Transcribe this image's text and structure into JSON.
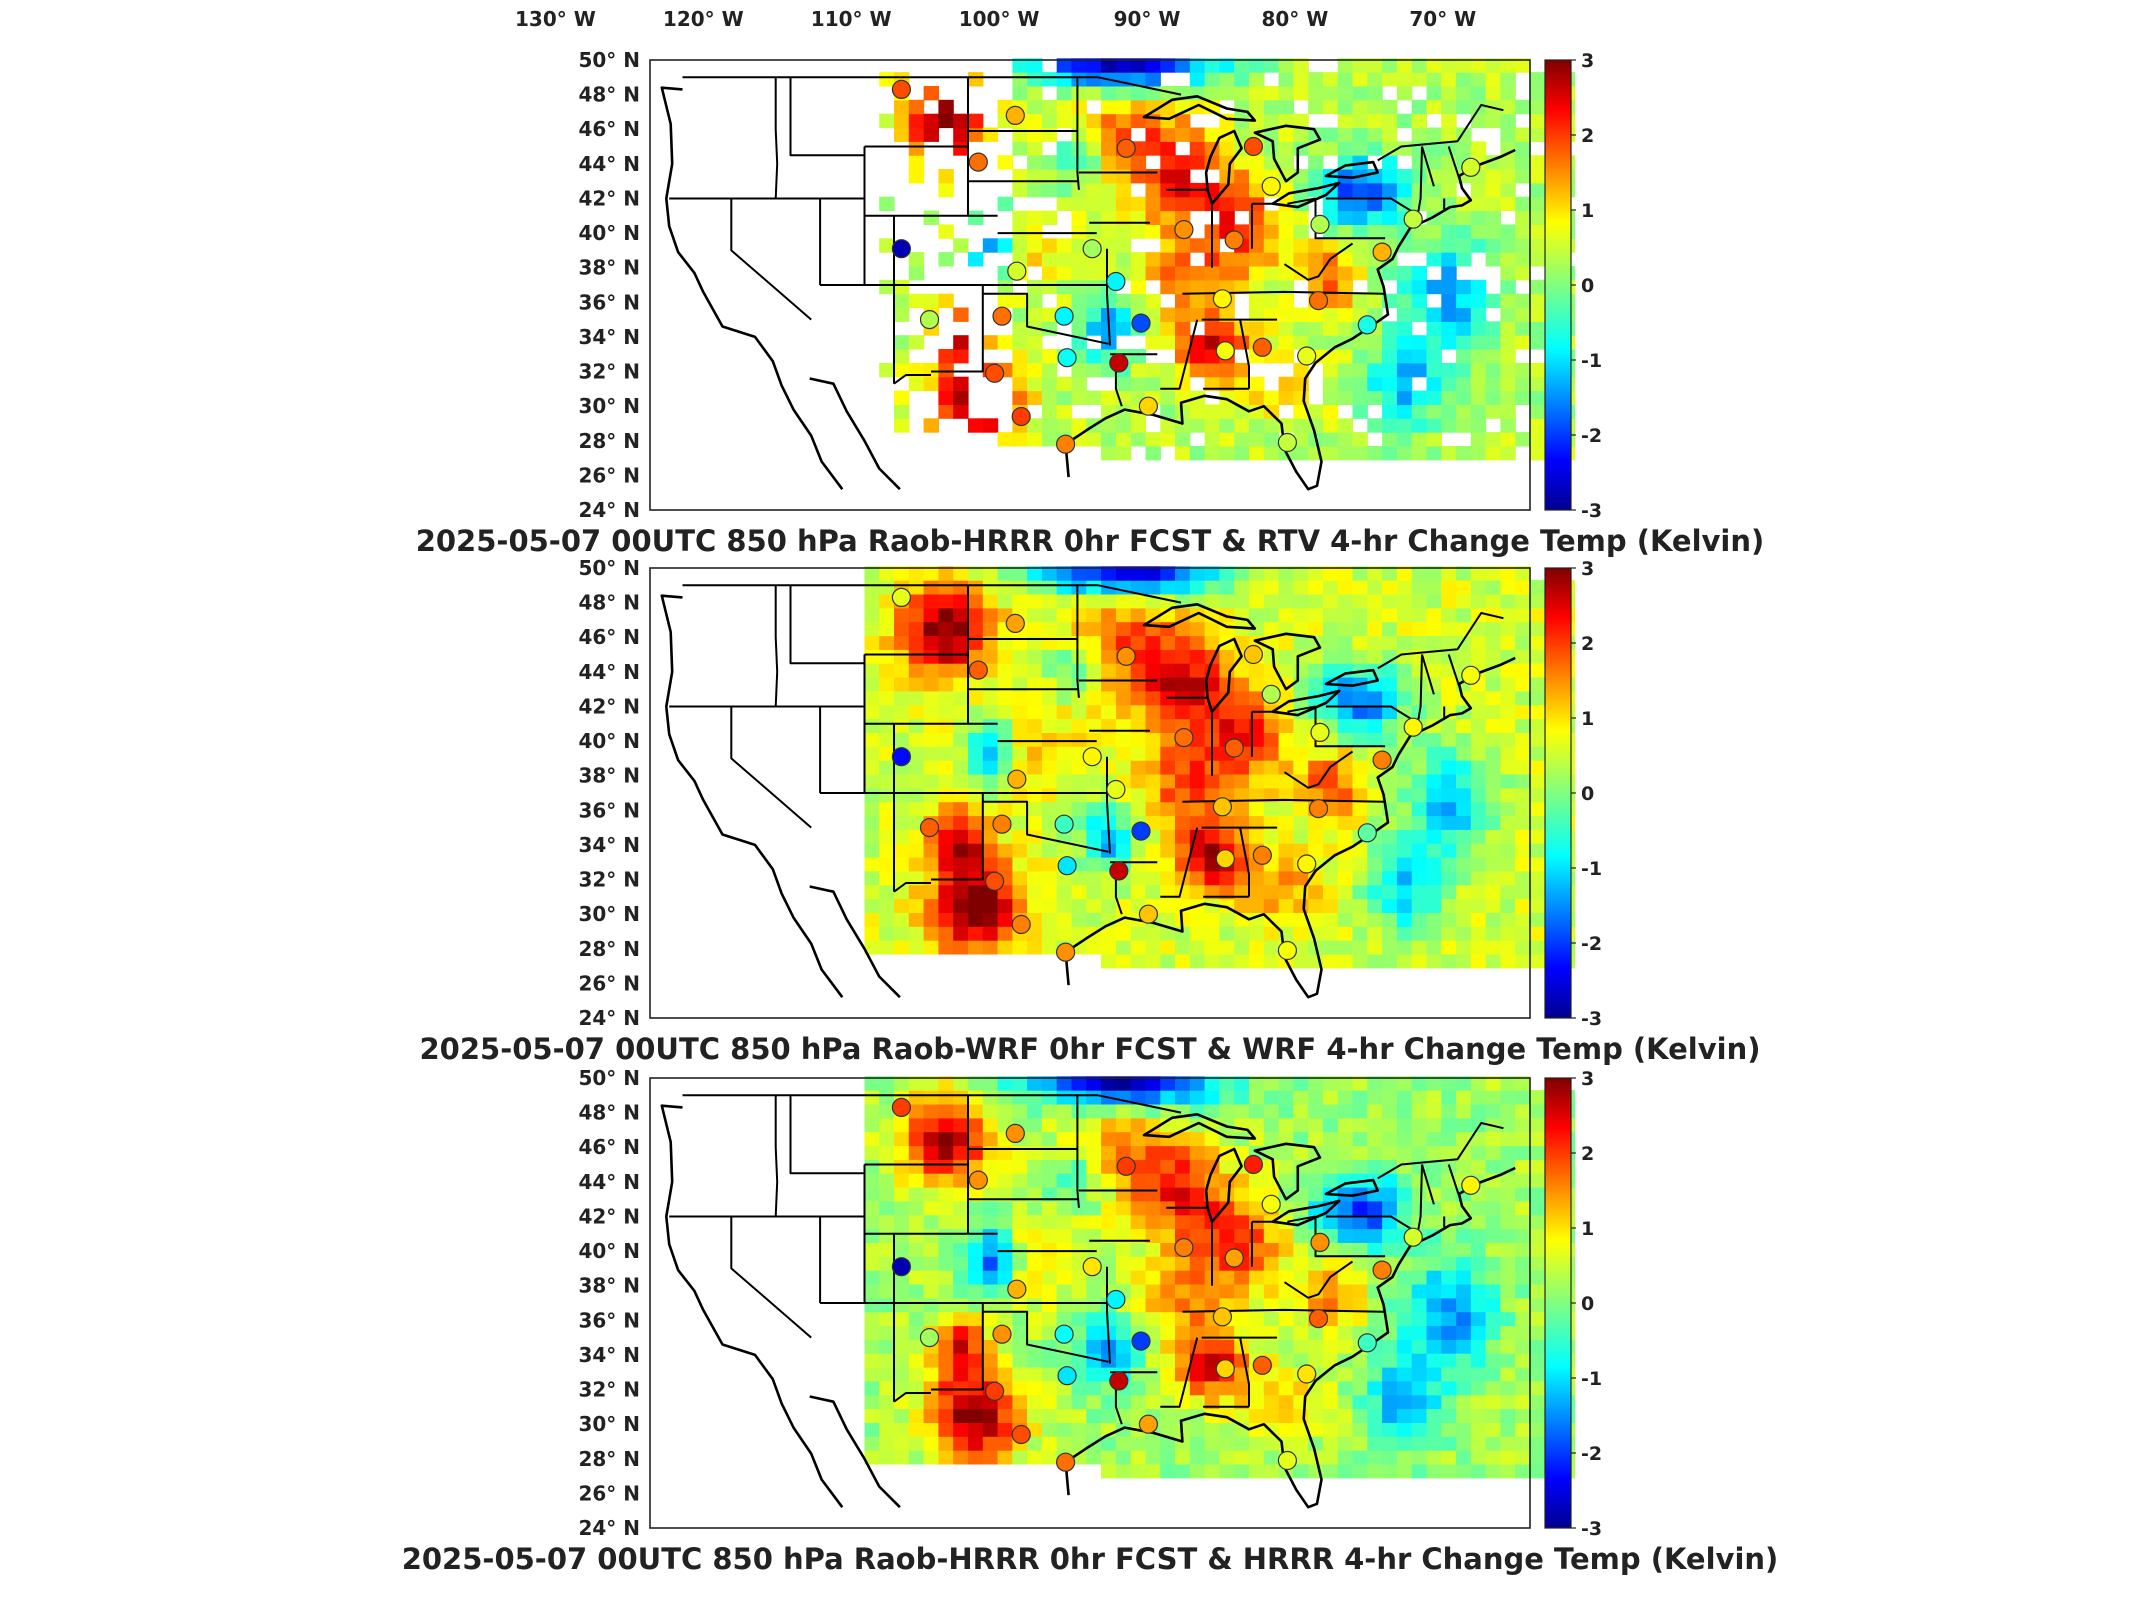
{
  "chart_data": [
    {
      "type": "heatmap",
      "title": "2025-05-07 00UTC 850 hPa Raob-HRRR 0hr FCST & RTV 4-hr Change Temp (Kelvin)",
      "lon_labels": [
        "130° W",
        "120° W",
        "110° W",
        "100° W",
        "90° W",
        "80° W",
        "70° W"
      ],
      "lat_labels": [
        "50° N",
        "48° N",
        "46° N",
        "44° N",
        "42° N",
        "40° N",
        "38° N",
        "36° N",
        "34° N",
        "32° N",
        "30° N",
        "28° N",
        "26° N",
        "24° N"
      ],
      "colorbar": {
        "ticks": [
          "3",
          "2",
          "1",
          "0",
          "-1",
          "-2",
          "-3"
        ],
        "range": [
          -3,
          3
        ],
        "colormap": "jet"
      },
      "coverage": "sparse"
    },
    {
      "type": "heatmap",
      "title": "2025-05-07 00UTC 850 hPa Raob-WRF 0hr FCST & WRF 4-hr Change Temp (Kelvin)",
      "lon_labels": [],
      "lat_labels": [
        "50° N",
        "48° N",
        "46° N",
        "44° N",
        "42° N",
        "40° N",
        "38° N",
        "36° N",
        "34° N",
        "32° N",
        "30° N",
        "28° N",
        "26° N",
        "24° N"
      ],
      "colorbar": {
        "ticks": [
          "3",
          "2",
          "1",
          "0",
          "-1",
          "-2",
          "-3"
        ],
        "range": [
          -3,
          3
        ],
        "colormap": "jet"
      },
      "coverage": "full"
    },
    {
      "type": "heatmap",
      "title": "2025-05-07 00UTC 850 hPa Raob-HRRR 0hr FCST & HRRR 4-hr Change Temp (Kelvin)",
      "lon_labels": [],
      "lat_labels": [
        "50° N",
        "48° N",
        "46° N",
        "44° N",
        "42° N",
        "40° N",
        "38° N",
        "36° N",
        "34° N",
        "32° N",
        "30° N",
        "28° N",
        "26° N",
        "24° N"
      ],
      "colorbar": {
        "ticks": [
          "3",
          "2",
          "1",
          "0",
          "-1",
          "-2",
          "-3"
        ],
        "range": [
          -3,
          3
        ],
        "colormap": "jet"
      },
      "coverage": "full"
    }
  ],
  "raob_stations": [
    {
      "lon": -108.5,
      "lat": 48.3,
      "v": [
        1.8,
        0.6,
        1.9
      ]
    },
    {
      "lon": -100.8,
      "lat": 46.8,
      "v": [
        1.2,
        1.3,
        1.4
      ]
    },
    {
      "lon": -103.3,
      "lat": 44.1,
      "v": [
        1.6,
        1.7,
        1.4
      ]
    },
    {
      "lon": -93.3,
      "lat": 44.9,
      "v": [
        1.7,
        1.4,
        1.9
      ]
    },
    {
      "lon": -84.7,
      "lat": 45.0,
      "v": [
        1.8,
        1.1,
        2.1
      ]
    },
    {
      "lon": -83.5,
      "lat": 42.7,
      "v": [
        0.8,
        0.3,
        0.7
      ]
    },
    {
      "lon": -89.4,
      "lat": 40.2,
      "v": [
        1.4,
        1.6,
        1.5
      ]
    },
    {
      "lon": -86.0,
      "lat": 39.6,
      "v": [
        1.5,
        1.7,
        1.3
      ]
    },
    {
      "lon": -80.2,
      "lat": 40.5,
      "v": [
        0.3,
        0.6,
        1.4
      ]
    },
    {
      "lon": -95.6,
      "lat": 39.1,
      "v": [
        0.2,
        0.8,
        0.9
      ]
    },
    {
      "lon": -100.7,
      "lat": 37.8,
      "v": [
        0.5,
        1.2,
        1.2
      ]
    },
    {
      "lon": -108.5,
      "lat": 39.1,
      "v": [
        -2.7,
        -2.2,
        -2.7
      ]
    },
    {
      "lon": -94.0,
      "lat": 37.2,
      "v": [
        -0.8,
        0.6,
        -0.8
      ]
    },
    {
      "lon": -86.8,
      "lat": 36.2,
      "v": [
        0.8,
        1.1,
        1.1
      ]
    },
    {
      "lon": -80.3,
      "lat": 36.1,
      "v": [
        1.6,
        1.5,
        1.7
      ]
    },
    {
      "lon": -106.6,
      "lat": 35.0,
      "v": [
        0.3,
        1.7,
        0.2
      ]
    },
    {
      "lon": -101.7,
      "lat": 35.2,
      "v": [
        1.6,
        1.5,
        1.4
      ]
    },
    {
      "lon": -97.5,
      "lat": 35.2,
      "v": [
        -0.8,
        -0.4,
        -0.7
      ]
    },
    {
      "lon": -92.3,
      "lat": 34.8,
      "v": [
        -1.8,
        -1.9,
        -1.9
      ]
    },
    {
      "lon": -97.3,
      "lat": 32.8,
      "v": [
        -0.7,
        -0.9,
        -0.9
      ]
    },
    {
      "lon": -102.2,
      "lat": 31.9,
      "v": [
        1.8,
        1.8,
        1.9
      ]
    },
    {
      "lon": -93.8,
      "lat": 32.5,
      "v": [
        2.6,
        2.6,
        2.6
      ]
    },
    {
      "lon": -86.6,
      "lat": 33.2,
      "v": [
        0.7,
        1.0,
        1.0
      ]
    },
    {
      "lon": -84.1,
      "lat": 33.4,
      "v": [
        1.7,
        1.5,
        1.7
      ]
    },
    {
      "lon": -81.1,
      "lat": 32.9,
      "v": [
        0.6,
        0.8,
        0.9
      ]
    },
    {
      "lon": -100.4,
      "lat": 29.4,
      "v": [
        1.9,
        1.5,
        1.8
      ]
    },
    {
      "lon": -97.4,
      "lat": 27.8,
      "v": [
        1.5,
        1.4,
        1.6
      ]
    },
    {
      "lon": -91.8,
      "lat": 30.0,
      "v": [
        1.0,
        1.1,
        1.3
      ]
    },
    {
      "lon": -82.4,
      "lat": 27.9,
      "v": [
        0.4,
        0.7,
        0.6
      ]
    },
    {
      "lon": -77.0,
      "lat": 34.7,
      "v": [
        -0.6,
        -0.2,
        -0.4
      ]
    },
    {
      "lon": -76.0,
      "lat": 38.9,
      "v": [
        1.2,
        1.5,
        1.5
      ]
    },
    {
      "lon": -73.9,
      "lat": 40.8,
      "v": [
        0.4,
        0.8,
        0.5
      ]
    },
    {
      "lon": -70.0,
      "lat": 43.8,
      "v": [
        0.5,
        0.7,
        0.8
      ]
    }
  ]
}
